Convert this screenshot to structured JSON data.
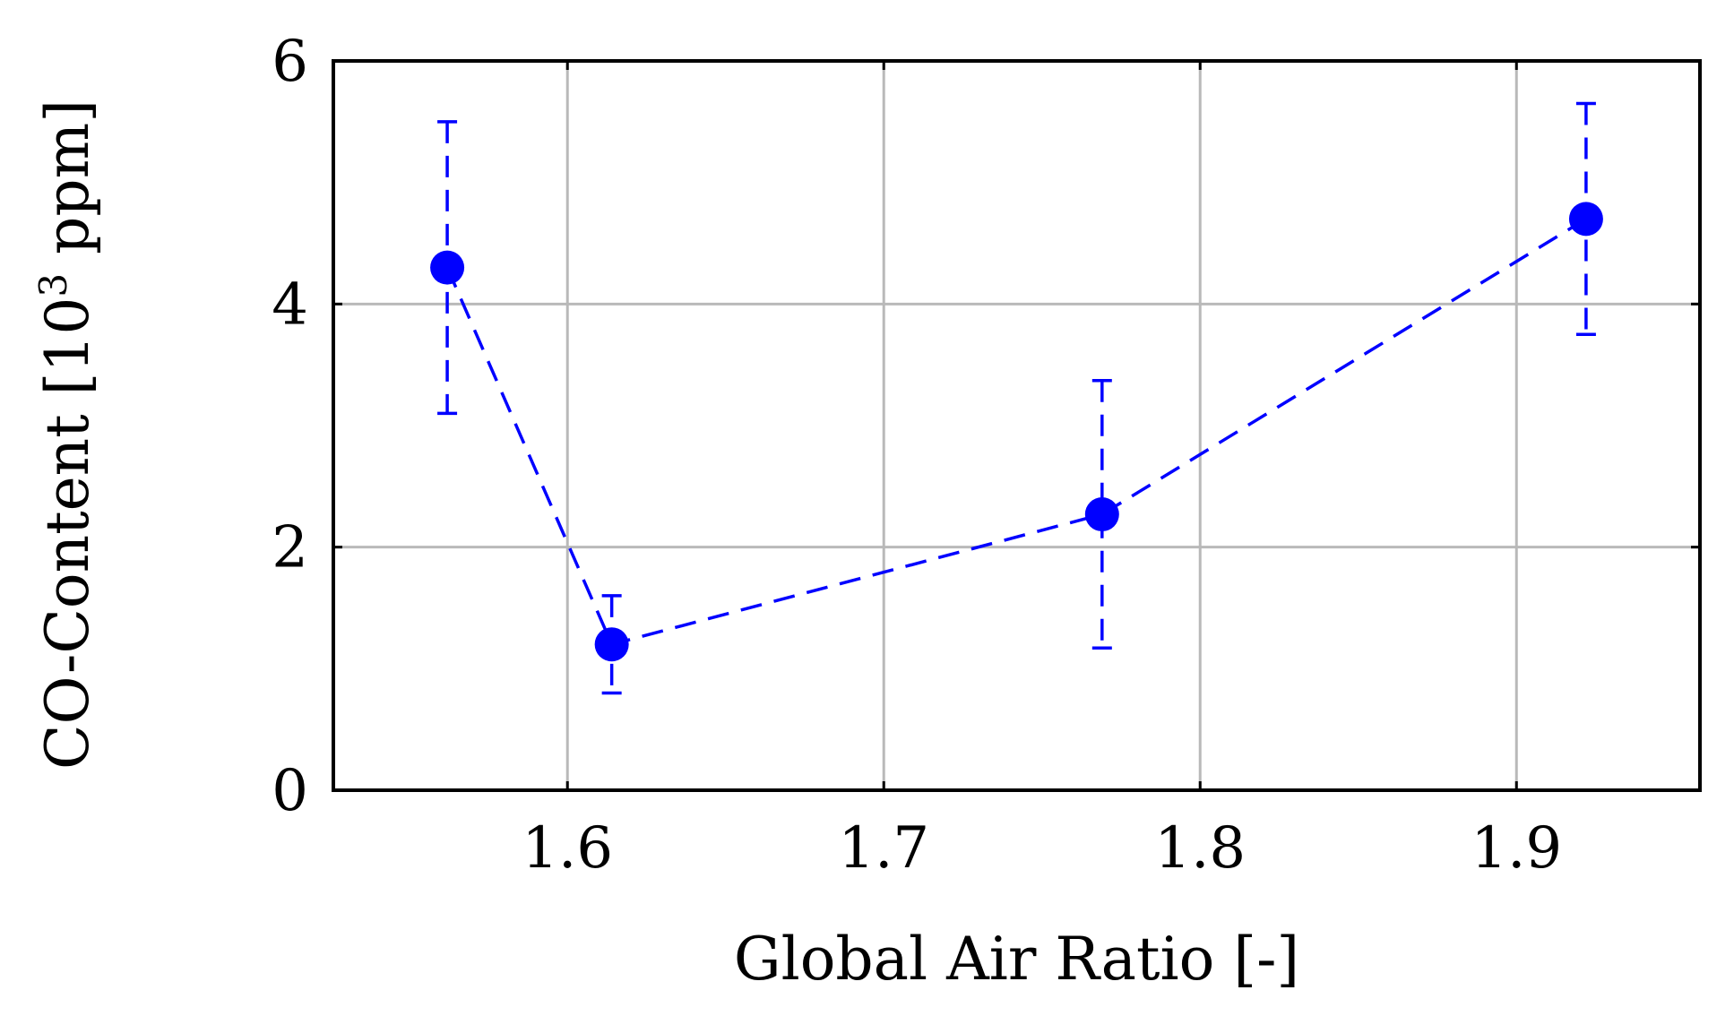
{
  "chart_data": {
    "type": "scatter",
    "xlabel": "Global Air Ratio [-]",
    "ylabel": "CO-Content [10",
    "ylabel_superscript": "3",
    "ylabel_unit": " ppm]",
    "xlim": [
      1.526,
      1.958
    ],
    "ylim": [
      0,
      6
    ],
    "x_ticks": [
      1.6,
      1.7,
      1.8,
      1.9
    ],
    "x_tick_labels": [
      "1.6",
      "1.7",
      "1.8",
      "1.9"
    ],
    "y_ticks": [
      0,
      2,
      4,
      6
    ],
    "y_tick_labels": [
      "0",
      "2",
      "4",
      "6"
    ],
    "grid": true,
    "series": [
      {
        "color": "#0000ff",
        "line_style": "dashed",
        "marker": "circle",
        "points": [
          {
            "x": 1.562,
            "y": 4.3,
            "y_low": 3.1,
            "y_high": 5.5
          },
          {
            "x": 1.614,
            "y": 1.2,
            "y_low": 0.8,
            "y_high": 1.6
          },
          {
            "x": 1.769,
            "y": 2.27,
            "y_low": 1.17,
            "y_high": 3.37
          },
          {
            "x": 1.922,
            "y": 4.7,
            "y_low": 3.75,
            "y_high": 5.65
          }
        ]
      }
    ]
  }
}
